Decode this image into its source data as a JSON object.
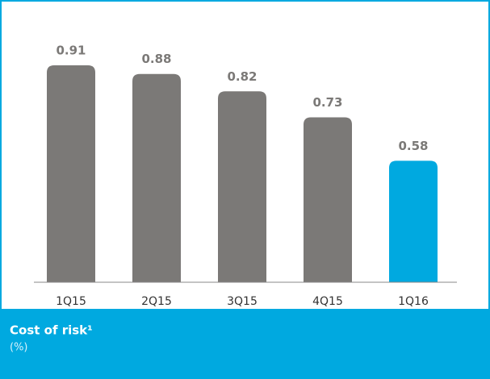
{
  "chart_data": {
    "type": "bar",
    "title": "Cost of risk¹",
    "subtitle": "(%)",
    "categories": [
      "1Q15",
      "2Q15",
      "3Q15",
      "4Q15",
      "1Q16"
    ],
    "values": [
      0.91,
      0.88,
      0.82,
      0.73,
      0.58
    ],
    "colors": [
      "#7b7977",
      "#7b7977",
      "#7b7977",
      "#7b7977",
      "#00a9e0"
    ],
    "ylim": [
      0.16,
      1.08
    ]
  }
}
